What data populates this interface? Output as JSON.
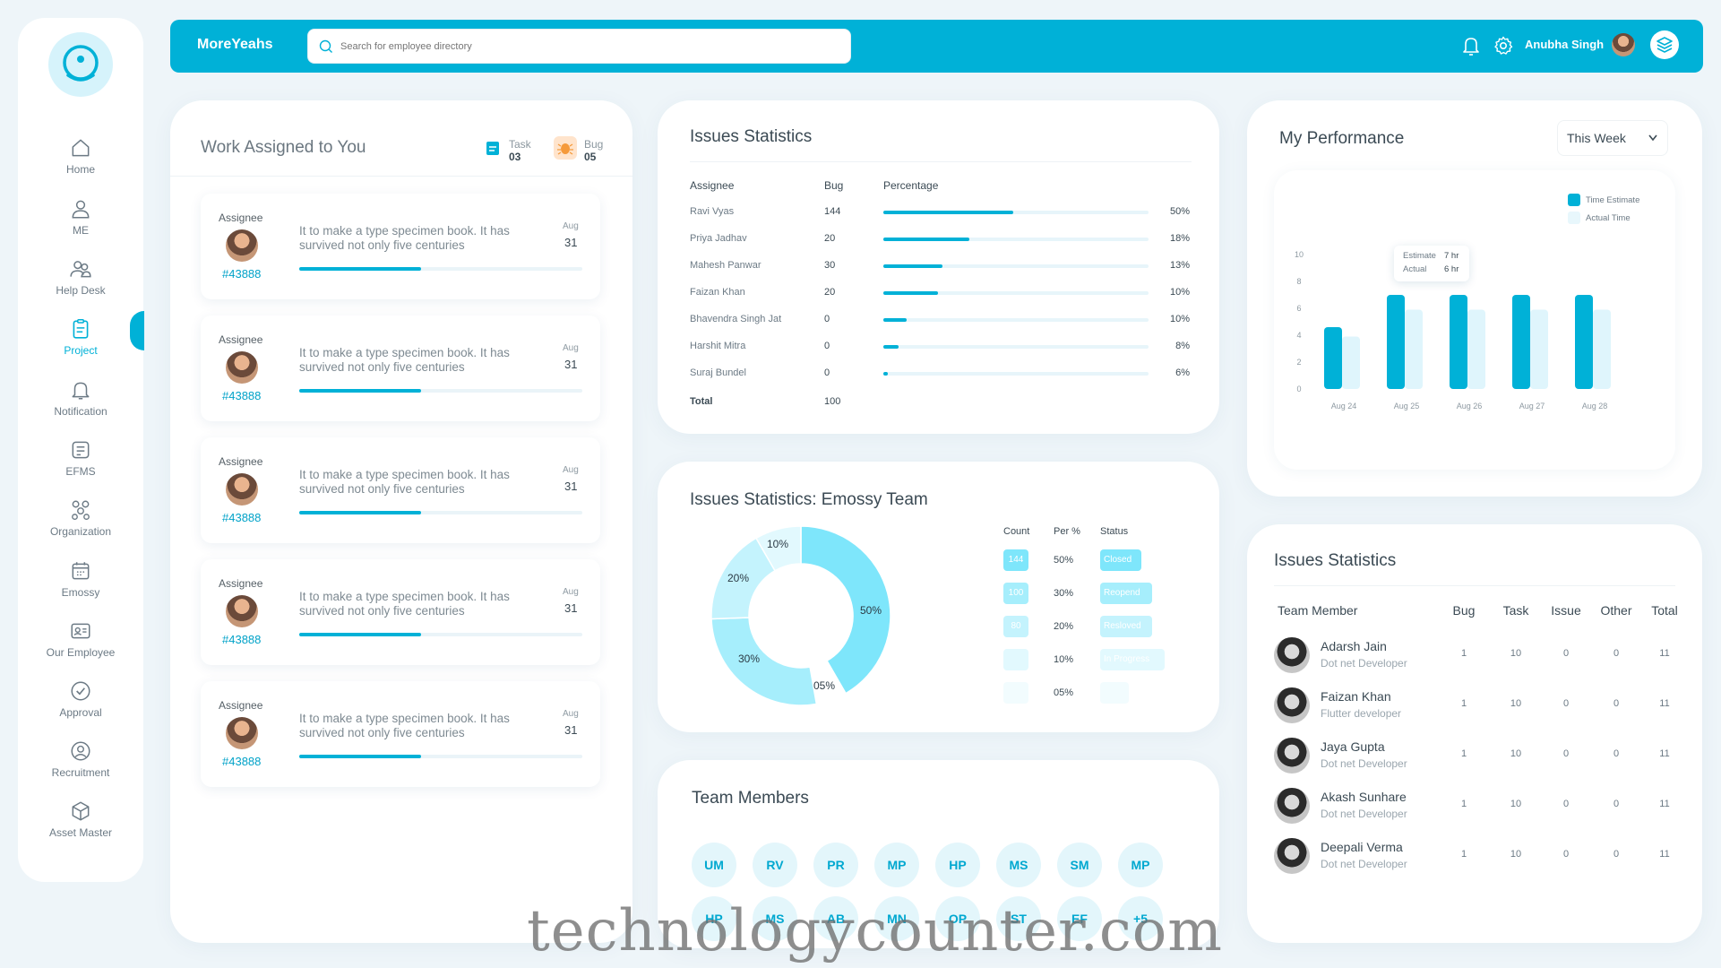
{
  "colors": {
    "accent": "#00b1d7",
    "light_accent": "#7ee6fb",
    "background": "#eef5f9"
  },
  "sidebar": {
    "items": [
      {
        "label": "Home",
        "icon": "home-icon"
      },
      {
        "label": "ME",
        "icon": "user-icon"
      },
      {
        "label": "Help Desk",
        "icon": "users-icon"
      },
      {
        "label": "Project",
        "icon": "clipboard-icon",
        "active": true
      },
      {
        "label": "Notification",
        "icon": "bell-icon"
      },
      {
        "label": "EFMS",
        "icon": "document-icon"
      },
      {
        "label": "Organization",
        "icon": "org-icon"
      },
      {
        "label": "Emossy",
        "icon": "calendar-icon"
      },
      {
        "label": "Our Employee",
        "icon": "id-card-icon"
      },
      {
        "label": "Approval",
        "icon": "check-circle-icon"
      },
      {
        "label": "Recruitment",
        "icon": "person-search-icon"
      },
      {
        "label": "Asset Master",
        "icon": "cube-icon"
      }
    ]
  },
  "header": {
    "brand": "MoreYeahs",
    "search_placeholder": "Search for employee directory",
    "user_name": "Anubha Singh"
  },
  "work": {
    "title": "Work Assigned to You",
    "task_label": "Task",
    "task_count": "03",
    "bug_label": "Bug",
    "bug_count": "05",
    "items": [
      {
        "assignee": "Assignee",
        "id": "#43888",
        "text": "It to make a type specimen book. It has survived not only five centuries",
        "month": "Aug",
        "day": "31",
        "progress": 0.43
      },
      {
        "assignee": "Assignee",
        "id": "#43888",
        "text": "It to make a type specimen book. It has survived not only five centuries",
        "month": "Aug",
        "day": "31",
        "progress": 0.43
      },
      {
        "assignee": "Assignee",
        "id": "#43888",
        "text": "It to make a type specimen book. It has survived not only five centuries",
        "month": "Aug",
        "day": "31",
        "progress": 0.43
      },
      {
        "assignee": "Assignee",
        "id": "#43888",
        "text": "It to make a type specimen book. It has survived not only five centuries",
        "month": "Aug",
        "day": "31",
        "progress": 0.43
      },
      {
        "assignee": "Assignee",
        "id": "#43888",
        "text": "It to make a type specimen book. It has survived not only five centuries",
        "month": "Aug",
        "day": "31",
        "progress": 0.43
      }
    ]
  },
  "issues": {
    "title": "Issues Statistics",
    "headers": [
      "Assignee",
      "Bug",
      "Percentage"
    ],
    "rows": [
      {
        "name": "Ravi Vyas",
        "bug": "144",
        "pct_label": "50%",
        "pct": 50
      },
      {
        "name": "Priya Jadhav",
        "bug": "20",
        "pct_label": "18%",
        "pct": 18
      },
      {
        "name": "Mahesh Panwar",
        "bug": "30",
        "pct_label": "13%",
        "pct": 13
      },
      {
        "name": "Faizan Khan",
        "bug": "20",
        "pct_label": "10%",
        "pct": 10
      },
      {
        "name": "Bhavendra Singh Jat",
        "bug": "0",
        "pct_label": "10%",
        "pct": 10
      },
      {
        "name": "Harshit Mitra",
        "bug": "0",
        "pct_label": "8%",
        "pct": 8
      },
      {
        "name": "Suraj Bundel",
        "bug": "0",
        "pct_label": "6%",
        "pct": 6
      }
    ],
    "total_label": "Total",
    "total_value": "100"
  },
  "emossy": {
    "title": "Issues Statistics: Emossy Team",
    "donut": [
      {
        "label": "50%",
        "value": 50,
        "color": "#7ee6fb"
      },
      {
        "label": "05%",
        "value": 5,
        "color": "#ffffff"
      },
      {
        "label": "30%",
        "value": 30,
        "color": "#a6eefc"
      },
      {
        "label": "20%",
        "value": 20,
        "color": "#c4f3fd"
      },
      {
        "label": "10%",
        "value": 10,
        "color": "#e2f9fe"
      }
    ],
    "headers": [
      "Count",
      "Per %",
      "Status"
    ],
    "rows": [
      {
        "count": "144",
        "pct": "50%",
        "status": "Closed",
        "color": "#7ee6fb"
      },
      {
        "count": "100",
        "pct": "30%",
        "status": "Reopend",
        "color": "#a6eefc"
      },
      {
        "count": "80",
        "pct": "20%",
        "status": "Resloved",
        "color": "#c4f3fd"
      },
      {
        "count": "",
        "pct": "10%",
        "status": "In Progress",
        "color": "#e2f9fe"
      },
      {
        "count": "",
        "pct": "05%",
        "status": "",
        "color": "#f2fcfe"
      }
    ]
  },
  "team": {
    "title": "Team Members",
    "members": [
      "UM",
      "RV",
      "PR",
      "MP",
      "HP",
      "MS",
      "SM",
      "MP",
      "HP",
      "MS",
      "AB",
      "MN",
      "OP",
      "ST",
      "EF",
      "+5"
    ]
  },
  "performance": {
    "title": "My Performance",
    "period": "This Week",
    "tooltip": {
      "estimate_label": "Estimate",
      "estimate_value": "7 hr",
      "actual_label": "Actual",
      "actual_value": "6 hr"
    }
  },
  "chart_data": {
    "type": "bar",
    "categories": [
      "Aug 24",
      "Aug 25",
      "Aug 26",
      "Aug 27",
      "Aug 28"
    ],
    "series": [
      {
        "name": "Time Estimate",
        "values": [
          4.6,
          7,
          7,
          7,
          7
        ],
        "color": "#00b1d7"
      },
      {
        "name": "Actual Time",
        "values": [
          3.9,
          5.9,
          5.9,
          5.9,
          5.9
        ],
        "color": "#dff5fc"
      }
    ],
    "ylim": [
      0,
      10
    ],
    "yticks": [
      "0",
      "2",
      "4",
      "6",
      "8",
      "10"
    ],
    "legend": "top-right"
  },
  "issues2": {
    "title": "Issues Statistics",
    "headers": [
      "Team Member",
      "Bug",
      "Task",
      "Issue",
      "Other",
      "Total"
    ],
    "rows": [
      {
        "name": "Adarsh Jain",
        "role": "Dot net Developer",
        "bug": "1",
        "task": "10",
        "issue": "0",
        "other": "0",
        "total": "11"
      },
      {
        "name": "Faizan Khan",
        "role": "Flutter developer",
        "bug": "1",
        "task": "10",
        "issue": "0",
        "other": "0",
        "total": "11"
      },
      {
        "name": "Jaya Gupta",
        "role": "Dot net Developer",
        "bug": "1",
        "task": "10",
        "issue": "0",
        "other": "0",
        "total": "11"
      },
      {
        "name": "Akash Sunhare",
        "role": "Dot net Developer",
        "bug": "1",
        "task": "10",
        "issue": "0",
        "other": "0",
        "total": "11"
      },
      {
        "name": "Deepali Verma",
        "role": "Dot net Developer",
        "bug": "1",
        "task": "10",
        "issue": "0",
        "other": "0",
        "total": "11"
      }
    ]
  },
  "watermark": "technologycounter.com"
}
